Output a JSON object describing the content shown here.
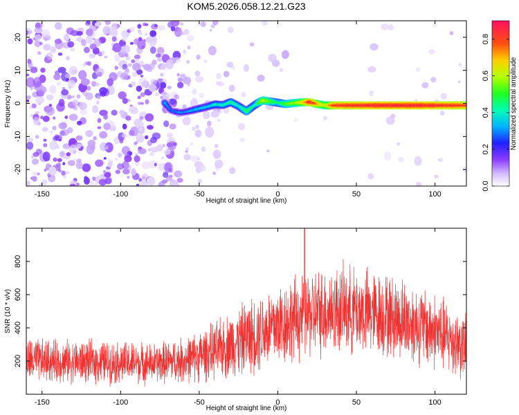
{
  "chart_data": [
    {
      "type": "heatmap",
      "title": "KOM5.2026.058.12.21.G23",
      "xlabel": "Height of straight line (km)",
      "ylabel": "Frequency (Hz)",
      "xlim": [
        -160,
        120
      ],
      "ylim": [
        -25,
        25
      ],
      "xticks": [
        "-150",
        "-100",
        "-50",
        "0",
        "50",
        "100"
      ],
      "xtick_values": [
        -150,
        -100,
        -50,
        0,
        50,
        100
      ],
      "yticks": [
        "-20",
        "-10",
        "0",
        "10",
        "20"
      ],
      "ytick_values": [
        -20,
        -10,
        0,
        10,
        20
      ],
      "colorbar": {
        "label": "Normalized spectral amplitude",
        "range": [
          0,
          0.9
        ],
        "ticks": [
          "0.0",
          "0.2",
          "0.4",
          "0.6",
          "0.8"
        ],
        "tick_values": [
          0,
          0.2,
          0.4,
          0.6,
          0.8
        ]
      },
      "ridge": {
        "description_values": "dominant frequency track vs height",
        "x": [
          -72,
          -68,
          -62,
          -58,
          -52,
          -45,
          -40,
          -35,
          -30,
          -25,
          -20,
          -15,
          -10,
          -5,
          0,
          5,
          10,
          15,
          20,
          25,
          30,
          35,
          60,
          90,
          120
        ],
        "y": [
          0.2,
          -2.2,
          -2.8,
          -2.5,
          -1.8,
          -1.0,
          -0.3,
          -0.5,
          0.4,
          -0.8,
          -2.4,
          -0.6,
          0.9,
          0.6,
          0.2,
          -0.2,
          0.1,
          0.3,
          0.4,
          -0.2,
          -0.6,
          -0.6,
          -0.6,
          -0.6,
          -0.6
        ],
        "amplitude": [
          0.3,
          0.2,
          0.25,
          0.25,
          0.3,
          0.3,
          0.35,
          0.35,
          0.4,
          0.35,
          0.45,
          0.35,
          0.6,
          0.5,
          0.4,
          0.5,
          0.55,
          0.65,
          0.85,
          0.7,
          0.6,
          0.8,
          0.85,
          0.85,
          0.8
        ]
      },
      "noise_region_x": [
        -160,
        -62
      ]
    },
    {
      "type": "line",
      "title": "",
      "xlabel": "Height of straight line (km)",
      "ylabel": "SNR (10 * v/v)",
      "xlim": [
        -160,
        120
      ],
      "ylim": [
        0,
        1000
      ],
      "xticks": [
        "-150",
        "-100",
        "-50",
        "0",
        "50",
        "100"
      ],
      "xtick_values": [
        -150,
        -100,
        -50,
        0,
        50,
        100
      ],
      "yticks": [
        "200",
        "400",
        "600",
        "800"
      ],
      "ytick_values": [
        200,
        400,
        600,
        800
      ],
      "color": "#ee3333",
      "envelope": {
        "x": [
          -160,
          -140,
          -120,
          -100,
          -80,
          -60,
          -50,
          -40,
          -30,
          -20,
          -10,
          0,
          10,
          20,
          30,
          40,
          60,
          80,
          100,
          110,
          120
        ],
        "mean": [
          200,
          200,
          195,
          190,
          185,
          205,
          230,
          260,
          300,
          340,
          380,
          420,
          450,
          480,
          500,
          510,
          490,
          450,
          380,
          330,
          280
        ],
        "spread": [
          160,
          150,
          150,
          150,
          140,
          160,
          180,
          200,
          230,
          260,
          280,
          300,
          300,
          310,
          310,
          310,
          300,
          290,
          270,
          250,
          230
        ]
      },
      "peak": {
        "x": 17,
        "y": 1000
      }
    }
  ]
}
